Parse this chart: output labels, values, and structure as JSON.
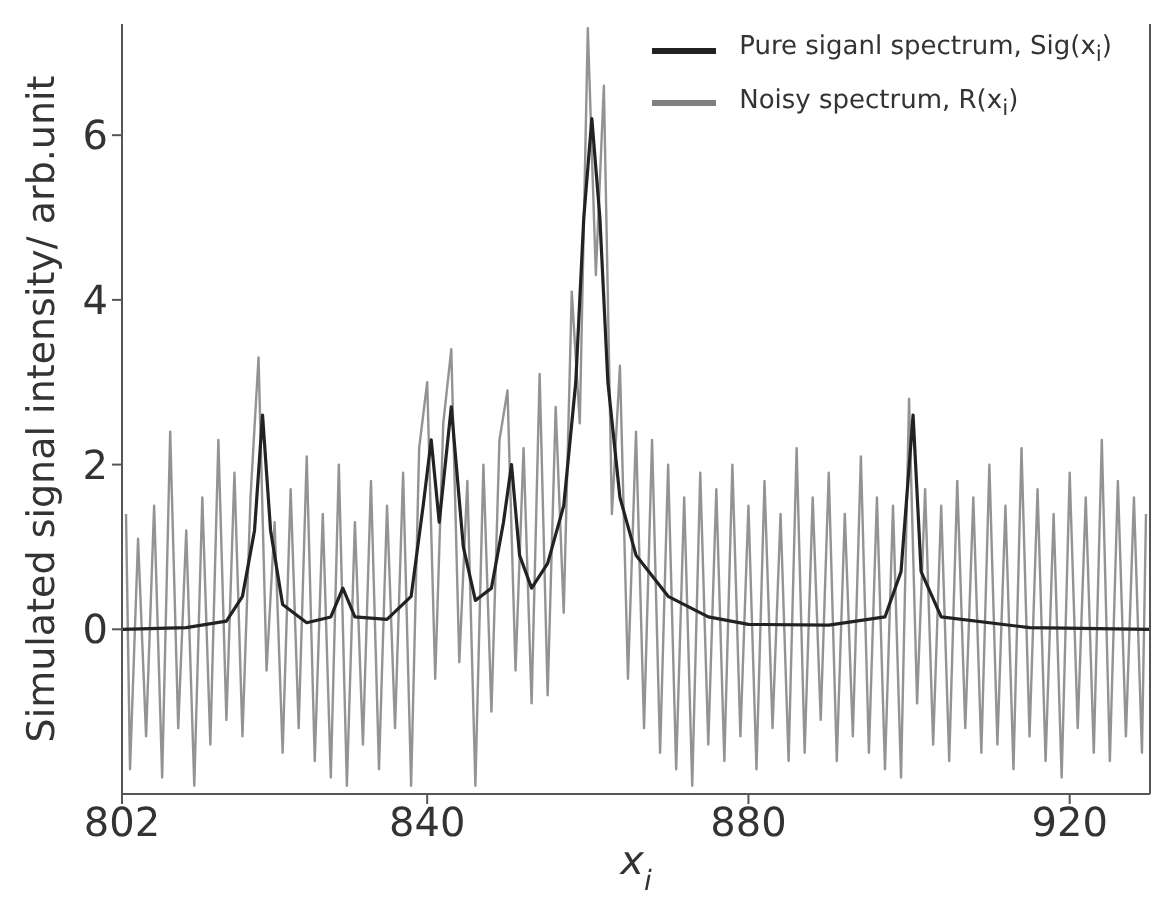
{
  "chart_data": {
    "type": "line",
    "xlabel": "x$_{i}$",
    "ylabel": "Simulated signal intensity/ arb.unit",
    "xlim": [
      802,
      930
    ],
    "xticks": [
      802,
      840,
      880,
      920
    ],
    "ylim": [
      -2,
      7.35
    ],
    "yticks": [
      0,
      2,
      4,
      6
    ],
    "grid": false,
    "legend": "top right",
    "marker": "none",
    "line_style": "solid",
    "series": [
      {
        "name": "Pure siganl spectrum, Sig(x$_{i}$)",
        "color": "#222222",
        "x": [
          802,
          810,
          815,
          817,
          818.5,
          819.5,
          820.5,
          822,
          825,
          828,
          829.5,
          831,
          835,
          838,
          839.5,
          840.5,
          841.5,
          843,
          844.5,
          846,
          848,
          849.5,
          850.5,
          851.5,
          853,
          855,
          857,
          858.5,
          859.5,
          860.5,
          861.5,
          862.5,
          864,
          866,
          870,
          875,
          880,
          890,
          897,
          899,
          900.5,
          901.5,
          904,
          915,
          930
        ],
        "values": [
          0,
          0.02,
          0.1,
          0.4,
          1.2,
          2.6,
          1.2,
          0.3,
          0.08,
          0.15,
          0.5,
          0.15,
          0.12,
          0.4,
          1.5,
          2.3,
          1.3,
          2.7,
          1.0,
          0.35,
          0.5,
          1.3,
          2.0,
          0.9,
          0.5,
          0.8,
          1.5,
          3.0,
          5.0,
          6.2,
          5.0,
          3.0,
          1.6,
          0.9,
          0.4,
          0.15,
          0.06,
          0.05,
          0.15,
          0.7,
          2.6,
          0.7,
          0.15,
          0.02,
          0
        ]
      },
      {
        "name": "Noisy spectrum, R(x$_{i}$)",
        "color": "#808080",
        "x": [
          802.5,
          803,
          804,
          805,
          806,
          807,
          808,
          809,
          810,
          811,
          812,
          813,
          814,
          815,
          816,
          817,
          818,
          819,
          820,
          821,
          822,
          823,
          824,
          825,
          826,
          827,
          828,
          829,
          830,
          831,
          832,
          833,
          834,
          835,
          836,
          837,
          838,
          839,
          840,
          841,
          842,
          843,
          844,
          845,
          846,
          847,
          848,
          849,
          850,
          851,
          852,
          853,
          854,
          855,
          856,
          857,
          858,
          859,
          860,
          861,
          862,
          863,
          864,
          865,
          866,
          867,
          868,
          869,
          870,
          871,
          872,
          873,
          874,
          875,
          876,
          877,
          878,
          879,
          880,
          881,
          882,
          883,
          884,
          885,
          886,
          887,
          888,
          889,
          890,
          891,
          892,
          893,
          894,
          895,
          896,
          897,
          898,
          899,
          900,
          901,
          902,
          903,
          904,
          905,
          906,
          907,
          908,
          909,
          910,
          911,
          912,
          913,
          914,
          915,
          916,
          917,
          918,
          919,
          920,
          921,
          922,
          923,
          924,
          925,
          926,
          927,
          928,
          929,
          929.5
        ],
        "values": [
          1.4,
          -1.7,
          1.1,
          -1.3,
          1.5,
          -1.8,
          2.4,
          -1.2,
          1.2,
          -1.9,
          1.6,
          -1.4,
          2.3,
          -1.1,
          1.9,
          -1.3,
          1.6,
          3.3,
          -0.5,
          1.3,
          -1.5,
          1.7,
          -1.2,
          2.1,
          -1.6,
          1.4,
          -1.8,
          2.0,
          -1.9,
          1.3,
          -1.4,
          1.8,
          -1.7,
          1.5,
          -1.2,
          1.9,
          -1.9,
          2.2,
          3.0,
          -0.6,
          2.5,
          3.4,
          -0.4,
          1.8,
          -1.9,
          2.0,
          -1.0,
          2.3,
          2.9,
          -0.5,
          2.2,
          -0.9,
          3.1,
          -0.8,
          2.7,
          0.2,
          4.1,
          2.5,
          7.3,
          4.3,
          6.6,
          1.4,
          3.2,
          -0.6,
          2.4,
          -1.2,
          2.3,
          -1.5,
          2.0,
          -1.7,
          1.6,
          -1.9,
          1.9,
          -1.4,
          1.7,
          -1.6,
          2.0,
          -1.3,
          1.5,
          -1.7,
          1.8,
          -1.2,
          1.4,
          -1.6,
          2.2,
          -1.5,
          1.6,
          -1.1,
          1.9,
          -1.6,
          1.4,
          -1.3,
          2.1,
          -1.5,
          1.6,
          -1.7,
          1.5,
          -1.8,
          2.8,
          -0.9,
          1.7,
          -1.4,
          1.5,
          -1.6,
          1.8,
          -1.2,
          1.6,
          -1.5,
          2.0,
          -1.4,
          1.5,
          -1.7,
          2.2,
          -1.3,
          1.7,
          -1.6,
          1.4,
          -1.8,
          1.9,
          -1.2,
          1.6,
          -1.5,
          2.3,
          -1.6,
          1.8,
          -1.3,
          1.6,
          -1.5,
          1.4
        ]
      }
    ]
  }
}
